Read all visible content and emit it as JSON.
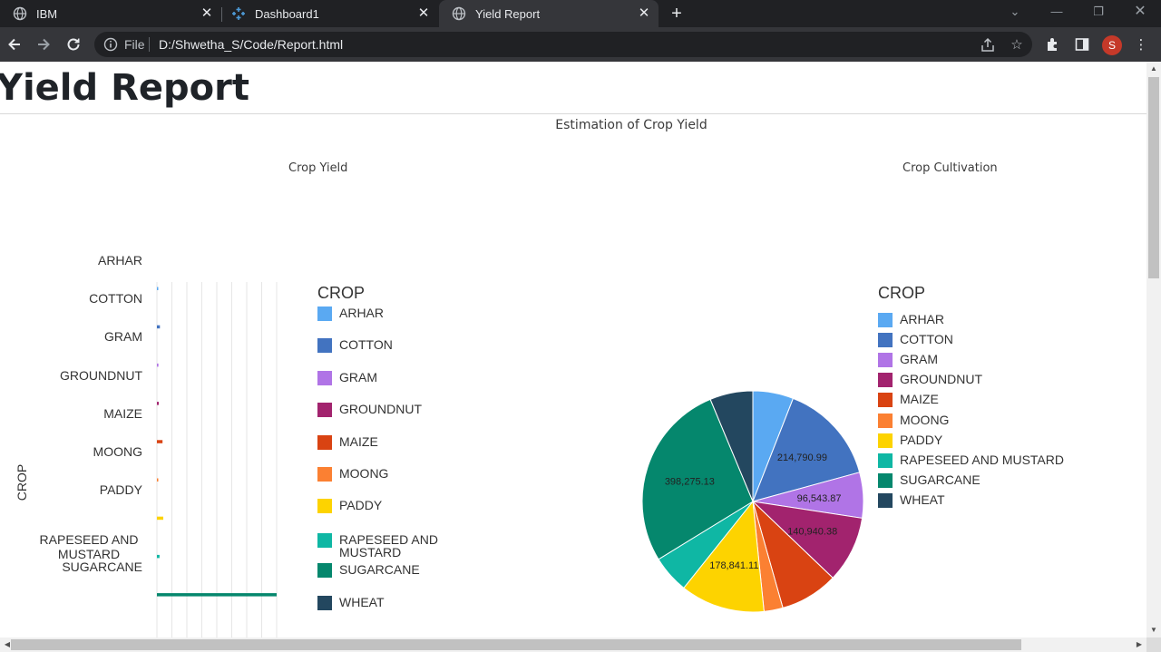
{
  "browser": {
    "tabs": [
      {
        "title": "IBM",
        "icon": "globe-icon",
        "active": false
      },
      {
        "title": "Dashboard1",
        "icon": "tableau-icon",
        "active": false
      },
      {
        "title": "Yield Report",
        "icon": "globe-icon",
        "active": true
      }
    ],
    "address": {
      "scheme_label": "File",
      "url": "D:/Shwetha_S/Code/Report.html"
    },
    "profile_initial": "S"
  },
  "page": {
    "title": "Yield Report",
    "dashboard_title": "Estimation of Crop Yield",
    "bar_title": "Crop Yield",
    "pie_title": "Crop Cultivation",
    "y_axis_label": "CROP"
  },
  "legend": {
    "title": "CROP",
    "items": [
      {
        "label": "ARHAR",
        "color": "#5aa9f2"
      },
      {
        "label": "COTTON",
        "color": "#4273c0"
      },
      {
        "label": "GRAM",
        "color": "#b074e6"
      },
      {
        "label": "GROUNDNUT",
        "color": "#a2236e"
      },
      {
        "label": "MAIZE",
        "color": "#d94312"
      },
      {
        "label": "MOONG",
        "color": "#fb8032"
      },
      {
        "label": "PADDY",
        "color": "#fdd300"
      },
      {
        "label": "RAPESEED AND MUSTARD",
        "color": "#0fb7a4"
      },
      {
        "label": "SUGARCANE",
        "color": "#05876d"
      },
      {
        "label": "WHEAT",
        "color": "#23475f"
      }
    ]
  },
  "chart_data": [
    {
      "type": "bar",
      "orientation": "horizontal",
      "title": "Crop Yield",
      "ylabel": "CROP",
      "categories": [
        "ARHAR",
        "COTTON",
        "GRAM",
        "GROUNDNUT",
        "MAIZE",
        "MOONG",
        "PADDY",
        "RAPESEED AND MUSTARD",
        "SUGARCANE"
      ],
      "values": [
        0.3,
        0.8,
        0.4,
        0.5,
        1.5,
        0.2,
        1.7,
        0.7,
        32
      ],
      "xlim": [
        0,
        32
      ],
      "grid": true
    },
    {
      "type": "pie",
      "title": "Crop Cultivation",
      "labels": [
        "ARHAR",
        "COTTON",
        "GRAM",
        "GROUNDNUT",
        "MAIZE",
        "MOONG",
        "PADDY",
        "RAPESEED AND MUSTARD",
        "SUGARCANE",
        "WHEAT"
      ],
      "values": [
        86000,
        214790.99,
        96543.87,
        140940.38,
        123000,
        40000,
        178841.11,
        80000,
        398275.13,
        91000
      ],
      "data_labels": {
        "COTTON": "214,790.99",
        "GRAM": "96,543.87",
        "GROUNDNUT": "140,940.38",
        "PADDY": "178,841.11",
        "SUGARCANE": "398,275.13"
      },
      "legend_position": "right"
    }
  ]
}
